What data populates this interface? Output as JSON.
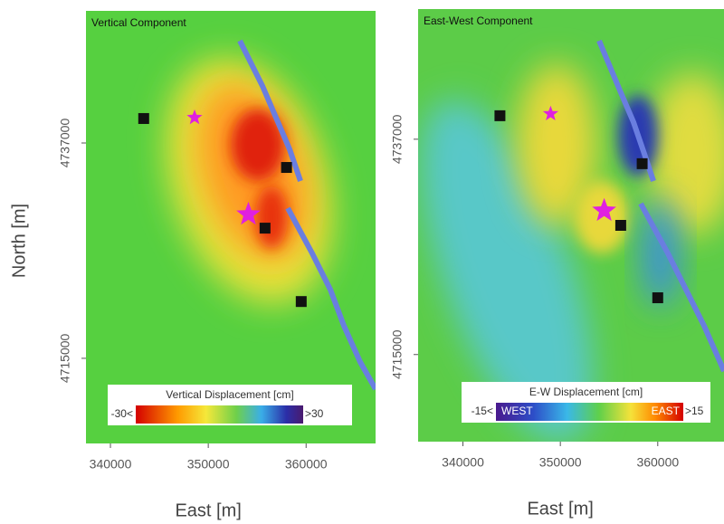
{
  "chart_data": [
    {
      "type": "map",
      "title": "Vertical Component",
      "xlabel": "East [m]",
      "ylabel": "North [m]",
      "xlim": [
        337500,
        367100
      ],
      "ylim": [
        4706300,
        4750500
      ],
      "xticks": [
        340000,
        350000,
        360000
      ],
      "yticks": [
        4715000,
        4737000
      ],
      "colorbar": {
        "title": "Vertical Displacement [cm]",
        "min_label": "-30<",
        "max_label": ">30"
      },
      "stations": {
        "x": [
          343400,
          358000,
          355800,
          359500
        ],
        "y": [
          4739500,
          4734500,
          4728300,
          4720800
        ]
      },
      "epicenters": {
        "x": [
          348600,
          354100
        ],
        "y": [
          4739600,
          4729700
        ]
      }
    },
    {
      "type": "map",
      "title": "East-West Component",
      "xlabel": "East [m]",
      "xlim": [
        335400,
        366800
      ],
      "ylim": [
        4706100,
        4750300
      ],
      "xticks": [
        340000,
        350000,
        360000
      ],
      "yticks": [
        4715000,
        4737000
      ],
      "colorbar": {
        "title": "E-W Displacement [cm]",
        "min_label": "-15<",
        "max_label": ">15",
        "left_word": "WEST",
        "right_word": "EAST"
      },
      "stations": {
        "x": [
          343800,
          358400,
          356200,
          360000
        ],
        "y": [
          4739400,
          4734500,
          4728200,
          4720800
        ]
      },
      "epicenters": {
        "x": [
          349000,
          354500
        ],
        "y": [
          4739600,
          4729700
        ]
      }
    }
  ]
}
